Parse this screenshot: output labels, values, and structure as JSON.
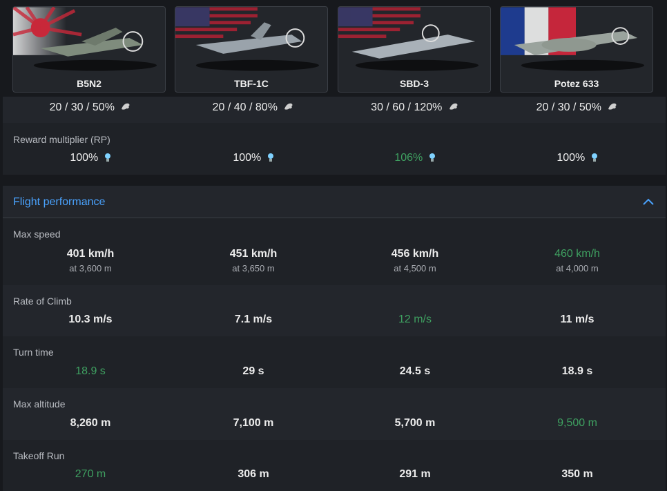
{
  "vehicles": [
    {
      "name": "B5N2",
      "flag": "japan"
    },
    {
      "name": "TBF-1C",
      "flag": "usa"
    },
    {
      "name": "SBD-3",
      "flag": "usa"
    },
    {
      "name": "Potez 633",
      "flag": "france"
    }
  ],
  "economy": {
    "row1": [
      "20 / 30 / 50%",
      "20 / 40 / 80%",
      "30 / 60 / 120%",
      "20 / 30 / 50%"
    ],
    "rp_label": "Reward multiplier (RP)",
    "rp_values": [
      "100%",
      "100%",
      "106%",
      "100%"
    ]
  },
  "flight": {
    "title": "Flight performance",
    "max_speed": {
      "label": "Max speed",
      "values": [
        "401 km/h",
        "451 km/h",
        "456 km/h",
        "460 km/h"
      ],
      "sub": [
        "at 3,600 m",
        "at 3,650 m",
        "at 4,500 m",
        "at 4,000 m"
      ]
    },
    "climb": {
      "label": "Rate of Climb",
      "values": [
        "10.3 m/s",
        "7.1 m/s",
        "12 m/s",
        "11 m/s"
      ]
    },
    "turn": {
      "label": "Turn time",
      "values": [
        "18.9 s",
        "29 s",
        "24.5 s",
        "18.9 s"
      ]
    },
    "altitude": {
      "label": "Max altitude",
      "values": [
        "8,260 m",
        "7,100 m",
        "5,700 m",
        "9,500 m"
      ]
    },
    "takeoff": {
      "label": "Takeoff Run",
      "values": [
        "270 m",
        "306 m",
        "291 m",
        "350 m"
      ]
    }
  },
  "colors": {
    "accent": "#4aa3ff",
    "best": "#3fa161"
  },
  "icons": [
    "eagle-icon",
    "lightbulb-icon",
    "chevron-up-icon"
  ]
}
